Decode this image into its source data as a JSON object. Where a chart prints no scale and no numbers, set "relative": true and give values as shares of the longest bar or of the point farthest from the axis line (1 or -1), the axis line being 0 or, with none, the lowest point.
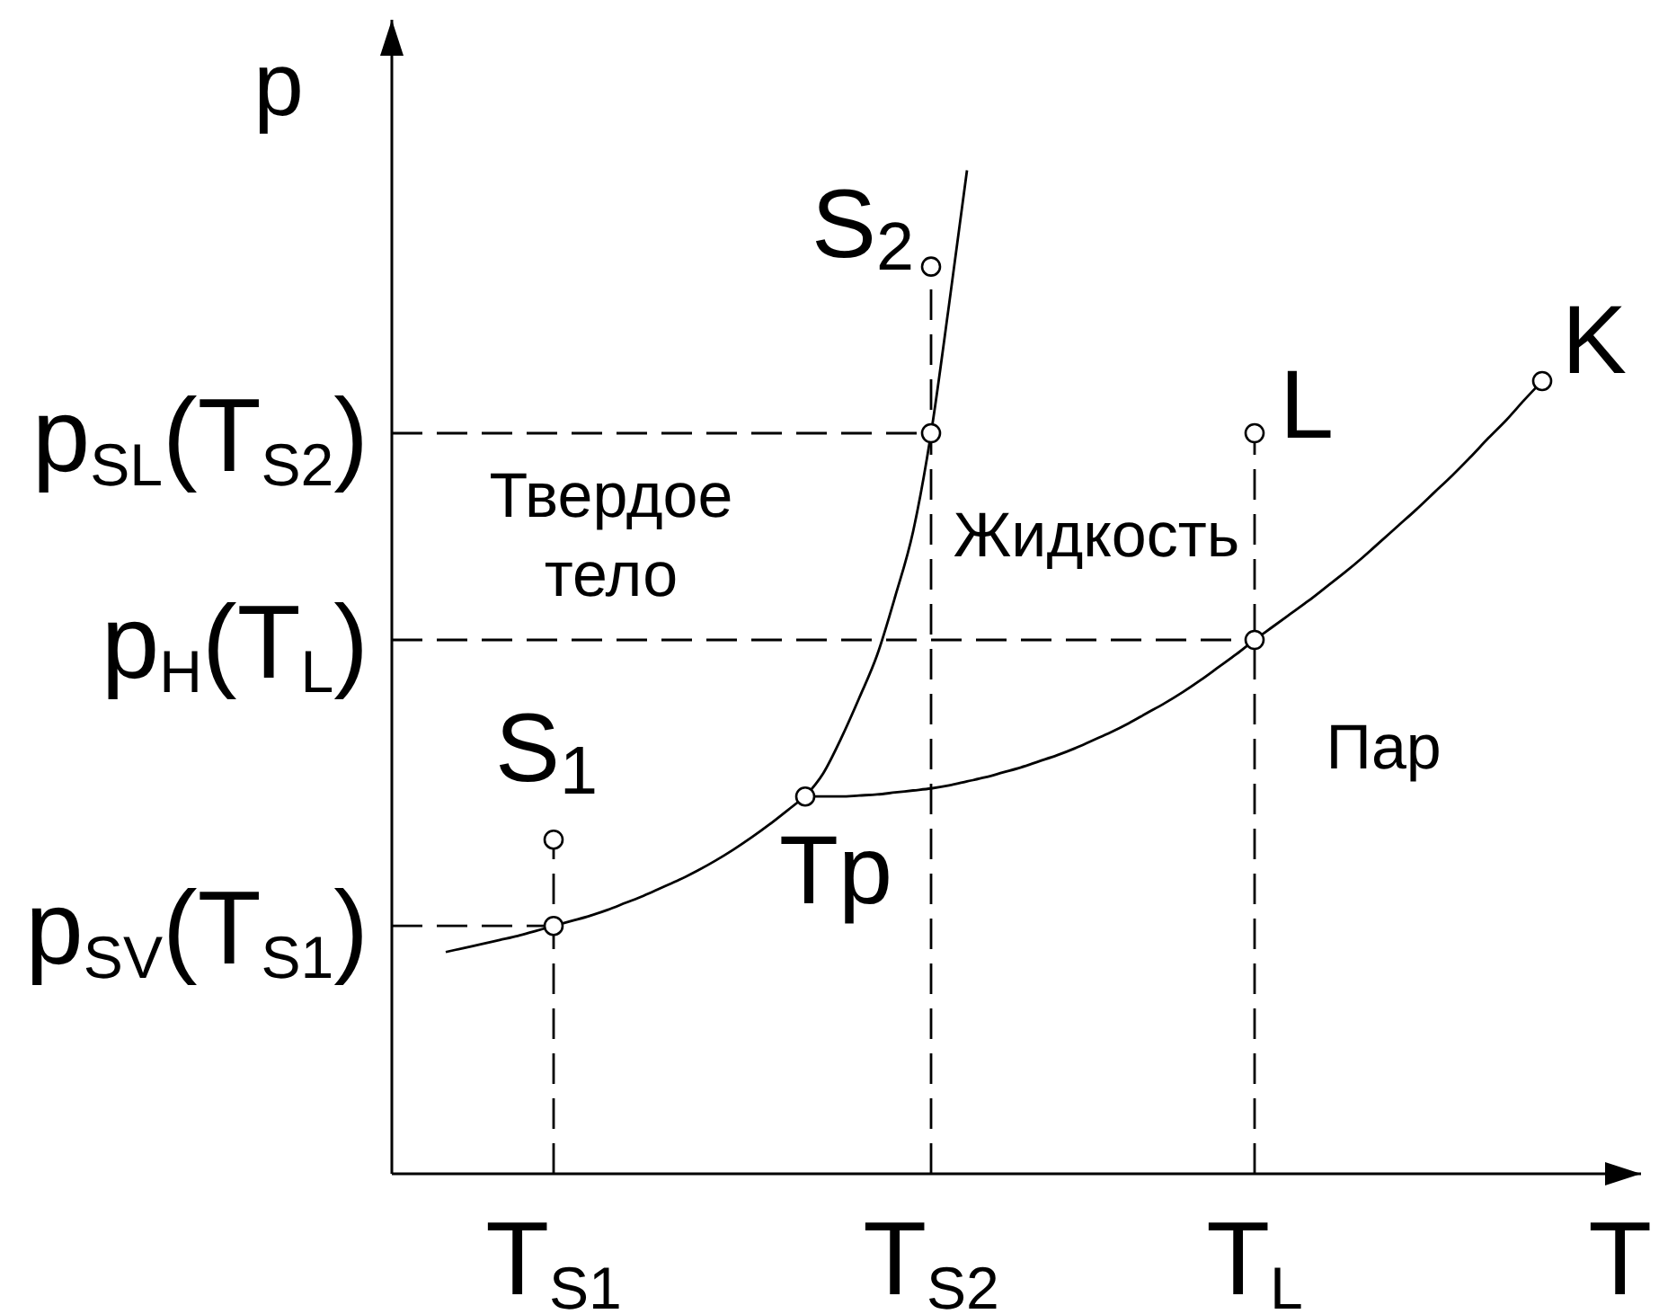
{
  "chart_data": {
    "type": "line",
    "relative": true,
    "xlabel": "T",
    "ylabel": "p",
    "categories": [
      null,
      null,
      null,
      null,
      null,
      null,
      null,
      null,
      null,
      "T$_{S1}$",
      null,
      null,
      null,
      null,
      null,
      null,
      null,
      null,
      null,
      null,
      null,
      null,
      null,
      null,
      null,
      null,
      null,
      null,
      null,
      null,
      "T$_{S2}$",
      null,
      null,
      null,
      null,
      null,
      null,
      null,
      null,
      null,
      null,
      null,
      null,
      null,
      null,
      null,
      null,
      null,
      "T$_{L}$",
      null,
      null,
      null,
      null,
      null,
      null,
      null,
      null,
      null,
      null,
      null,
      null,
      null,
      null,
      null,
      null,
      null,
      null,
      null,
      null,
      null
    ],
    "series": [
      {
        "color": "#000000",
        "values": [
          null,
          null,
          null,
          0.221,
          0.225,
          0.229,
          0.233,
          0.237,
          0.242,
          0.247,
          0.252,
          0.257,
          0.263,
          0.27,
          0.277,
          0.285,
          0.293,
          0.302,
          0.312,
          0.323,
          0.335,
          0.348,
          0.362,
          0.376,
          null,
          null,
          null,
          null,
          null,
          null,
          null,
          null,
          null,
          null,
          null,
          null,
          null,
          null,
          null,
          null,
          null,
          null,
          null,
          null,
          null,
          null,
          null,
          null,
          null,
          null,
          null,
          null,
          null,
          null,
          null,
          null,
          null,
          null,
          null,
          null,
          null,
          null,
          null,
          null,
          null,
          null,
          null,
          null,
          null,
          null
        ]
      },
      {
        "color": "#000000",
        "values": [
          null,
          null,
          null,
          null,
          null,
          null,
          null,
          null,
          null,
          null,
          null,
          null,
          null,
          null,
          null,
          null,
          null,
          null,
          null,
          null,
          null,
          null,
          null,
          0.376,
          0.399,
          0.434,
          0.474,
          0.517,
          0.575,
          0.64,
          0.738,
          0.866,
          1,
          null,
          null,
          null,
          null,
          null,
          null,
          null,
          null,
          null,
          null,
          null,
          null,
          null,
          null,
          null,
          null,
          null,
          null,
          null,
          null,
          null,
          null,
          null,
          null,
          null,
          null,
          null,
          null,
          null,
          null,
          null,
          null,
          null,
          null,
          null,
          null,
          null
        ]
      },
      {
        "color": "#000000",
        "values": [
          null,
          null,
          null,
          null,
          null,
          null,
          null,
          null,
          null,
          null,
          null,
          null,
          null,
          null,
          null,
          null,
          null,
          null,
          null,
          null,
          null,
          null,
          null,
          0.376,
          0.376,
          0.376,
          0.377,
          0.378,
          0.38,
          0.382,
          0.384,
          0.387,
          0.391,
          0.395,
          0.4,
          0.405,
          0.411,
          0.417,
          0.424,
          0.432,
          0.44,
          0.449,
          0.459,
          0.469,
          0.48,
          0.492,
          0.505,
          0.518,
          0.532,
          0.545,
          0.558,
          0.571,
          0.585,
          0.599,
          0.614,
          0.63,
          0.646,
          0.662,
          0.679,
          0.696,
          0.714,
          0.733,
          0.751,
          0.771,
          0.79,
          null,
          null,
          null,
          null,
          null
        ]
      },
      {
        "color": "#000000",
        "line_style": "dashed",
        "values": [
          0.247,
          0.247,
          0.247,
          0.247,
          0.247,
          0.247,
          0.247,
          0.247,
          0.247,
          0.247,
          null,
          null,
          null,
          null,
          null,
          null,
          null,
          null,
          null,
          null,
          null,
          null,
          null,
          null,
          null,
          null,
          null,
          null,
          null,
          null,
          null,
          null,
          null,
          null,
          null,
          null,
          null,
          null,
          null,
          null,
          null,
          null,
          null,
          null,
          null,
          null,
          null,
          null,
          null,
          null,
          null,
          null,
          null,
          null,
          null,
          null,
          null,
          null,
          null,
          null,
          null,
          null,
          null,
          null,
          null,
          null,
          null,
          null,
          null,
          null
        ]
      },
      {
        "color": "#000000",
        "line_style": "dashed",
        "values": [
          0.738,
          0.738,
          0.738,
          0.738,
          0.738,
          0.738,
          0.738,
          0.738,
          0.738,
          0.738,
          0.738,
          0.738,
          0.738,
          0.738,
          0.738,
          0.738,
          0.738,
          0.738,
          0.738,
          0.738,
          0.738,
          0.738,
          0.738,
          0.738,
          0.738,
          0.738,
          0.738,
          0.738,
          0.738,
          0.738,
          0.738,
          null,
          null,
          null,
          null,
          null,
          null,
          null,
          null,
          null,
          null,
          null,
          null,
          null,
          null,
          null,
          null,
          null,
          null,
          null,
          null,
          null,
          null,
          null,
          null,
          null,
          null,
          null,
          null,
          null,
          null,
          null,
          null,
          null,
          null,
          null,
          null,
          null,
          null,
          null
        ]
      },
      {
        "color": "#000000",
        "line_style": "dashed",
        "values": [
          0.532,
          0.532,
          0.532,
          0.532,
          0.532,
          0.532,
          0.532,
          0.532,
          0.532,
          0.532,
          0.532,
          0.532,
          0.532,
          0.532,
          0.532,
          0.532,
          0.532,
          0.532,
          0.532,
          0.532,
          0.532,
          0.532,
          0.532,
          0.532,
          0.532,
          0.532,
          0.532,
          0.532,
          0.532,
          0.532,
          0.532,
          0.532,
          0.532,
          0.532,
          0.532,
          0.532,
          0.532,
          0.532,
          0.532,
          0.532,
          0.532,
          0.532,
          0.532,
          0.532,
          0.532,
          0.532,
          0.532,
          0.532,
          0.532,
          null,
          null,
          null,
          null,
          null,
          null,
          null,
          null,
          null,
          null,
          null,
          null,
          null,
          null,
          null,
          null,
          null,
          null,
          null,
          null,
          null
        ]
      },
      {
        "color": "#000000",
        "line_style": "dashed",
        "x": [
          "T$_{S1}$",
          "T$_{S1}$"
        ],
        "values": [
          0,
          0.333
        ]
      },
      {
        "color": "#000000",
        "line_style": "dashed",
        "x": [
          "T$_{S2}$",
          "T$_{S2}$"
        ],
        "values": [
          0,
          0.904
        ]
      },
      {
        "color": "#000000",
        "line_style": "dashed",
        "x": [
          "T$_{L}$",
          "T$_{L}$"
        ],
        "values": [
          0,
          0.738
        ]
      },
      {
        "type": "scatter",
        "color": "#000000",
        "marker": "circle",
        "x": [
          "T$_{S1}$",
          "T$_{S2}$",
          "T$_{L}$"
        ],
        "values": [
          0.333,
          0.904,
          0.738
        ]
      },
      {
        "type": "scatter",
        "color": "#000000",
        "marker": "circle",
        "values": [
          null,
          null,
          null,
          null,
          null,
          null,
          null,
          null,
          null,
          0.247,
          null,
          null,
          null,
          null,
          null,
          null,
          null,
          null,
          null,
          null,
          null,
          null,
          null,
          0.376,
          null,
          null,
          null,
          null,
          null,
          null,
          0.738,
          null,
          null,
          null,
          null,
          null,
          null,
          null,
          null,
          null,
          null,
          null,
          null,
          null,
          null,
          null,
          null,
          null,
          0.532,
          null,
          null,
          null,
          null,
          null,
          null,
          null,
          null,
          null,
          null,
          null,
          null,
          null,
          null,
          null,
          0.79,
          null,
          null,
          null,
          null,
          null
        ]
      }
    ],
    "annotations": [
      {
        "text": "S$_{1}$",
        "x": "T$_{S1}$",
        "y": 0.333
      },
      {
        "text": "S$_{2}$",
        "x": "T$_{S2}$",
        "y": 0.904
      },
      {
        "text": "L",
        "x": "T$_{L}$",
        "y": 0.738
      },
      "K",
      "Tp",
      "Твердое тело",
      "Жидкость",
      "Пар",
      "p$_{SV}$(T$_{S1}$)",
      "p$_{H}$(T$_{L}$)",
      "p$_{SL}$(T$_{S2}$)"
    ]
  }
}
